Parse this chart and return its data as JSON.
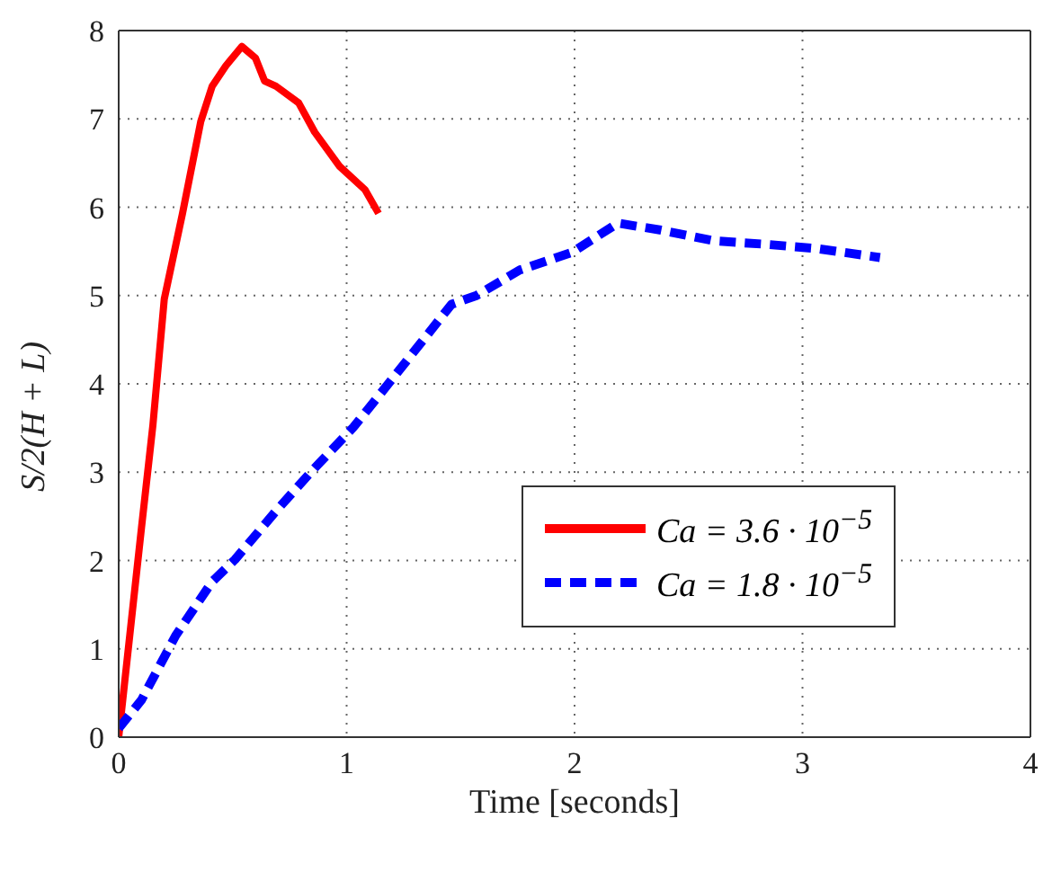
{
  "chart_data": {
    "type": "line",
    "xlabel": "Time [seconds]",
    "ylabel": "S/2(H + L)",
    "xlim": [
      0,
      4
    ],
    "xticks": [
      0,
      1,
      2,
      3,
      4
    ],
    "ylim": [
      0,
      8
    ],
    "yticks": [
      0,
      1,
      2,
      3,
      4,
      5,
      6,
      7,
      8
    ],
    "grid": true,
    "legend": "right",
    "marker": "none",
    "series": [
      {
        "name": "Ca = 3.6 · 10$^{−5}$",
        "color": "#ff0000",
        "line_style": "solid",
        "x": [
          0,
          0.1,
          0.15,
          0.2,
          0.28,
          0.36,
          0.41,
          0.47,
          0.54,
          0.6,
          0.64,
          0.69,
          0.79,
          0.86,
          0.97,
          1.08,
          1.14
        ],
        "values": [
          0,
          2.37,
          3.53,
          4.96,
          5.93,
          6.97,
          7.37,
          7.6,
          7.82,
          7.69,
          7.43,
          7.37,
          7.18,
          6.85,
          6.46,
          6.2,
          5.93
        ]
      },
      {
        "name": "Ca = 1.8 · 10$^{−5}$",
        "color": "#0000ff",
        "line_style": "dashed",
        "x": [
          0,
          0.1,
          0.25,
          0.41,
          0.51,
          0.69,
          0.85,
          1.03,
          1.18,
          1.46,
          1.57,
          1.76,
          1.99,
          2.19,
          2.38,
          2.61,
          2.84,
          3.07,
          3.34
        ],
        "values": [
          0.1,
          0.42,
          1.15,
          1.76,
          2.01,
          2.56,
          3.02,
          3.51,
          3.99,
          4.9,
          5.0,
          5.29,
          5.49,
          5.82,
          5.74,
          5.62,
          5.58,
          5.53,
          5.43
        ]
      }
    ]
  }
}
